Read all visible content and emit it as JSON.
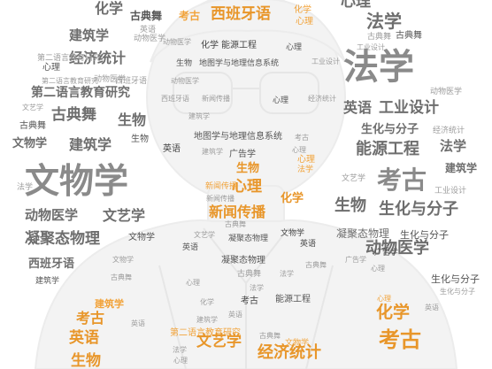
{
  "colors": {
    "gray_dark": "#555555",
    "gray_mid": "#8a8a8a",
    "gray_light": "#9c9c9c",
    "orange": "#f2a33a",
    "silhouette": "#f4f4f4"
  },
  "words": [
    "心理",
    "法学",
    "考古",
    "西班牙语",
    "化学",
    "心理",
    "建筑学",
    "英语",
    "古典舞",
    "法学",
    "古典舞",
    "建筑学",
    "动物医学",
    "化学",
    "能源工程",
    "心理",
    "工业设计",
    "经济统计",
    "第二语言教育研究",
    "心理",
    "生物",
    "地图学与地理信息系统",
    "法学",
    "第二语言教育研究",
    "动物医学",
    "西班牙语",
    "英语",
    "古典舞",
    "生物",
    "西班牙语",
    "新闻传播",
    "心理",
    "经济统计",
    "英语",
    "工业设计",
    "文艺学",
    "生物",
    "古典舞",
    "建筑学",
    "生化与分子",
    "经济统计",
    "文物学",
    "建筑学",
    "地图学与地理信息系统",
    "考古",
    "能源工程",
    "法学",
    "英语",
    "广告学",
    "建筑学",
    "生物",
    "心理",
    "文物学",
    "考古",
    "法学",
    "工业设计",
    "动物医学",
    "文艺学",
    "心理",
    "化学",
    "新闻传播",
    "生物",
    "生化与分子",
    "新闻传播",
    "动物医学",
    "凝聚态物理",
    "文物学",
    "凝聚态物理",
    "文物学",
    "英语",
    "凝聚态物理",
    "生化与分子",
    "西班牙语",
    "动物医学",
    "凝聚态物理",
    "古典舞",
    "广告学",
    "心理",
    "建筑学",
    "法学",
    "生化与分子",
    "建筑学",
    "心理",
    "法学",
    "生化与分子",
    "化学",
    "考古",
    "能源工程",
    "心理",
    "化学",
    "考古",
    "英语",
    "生化与分子",
    "建筑学",
    "英语",
    "英语",
    "第二语言教育研究",
    "文艺学",
    "古典舞",
    "生物",
    "心理",
    "法学",
    "经济统计"
  ]
}
